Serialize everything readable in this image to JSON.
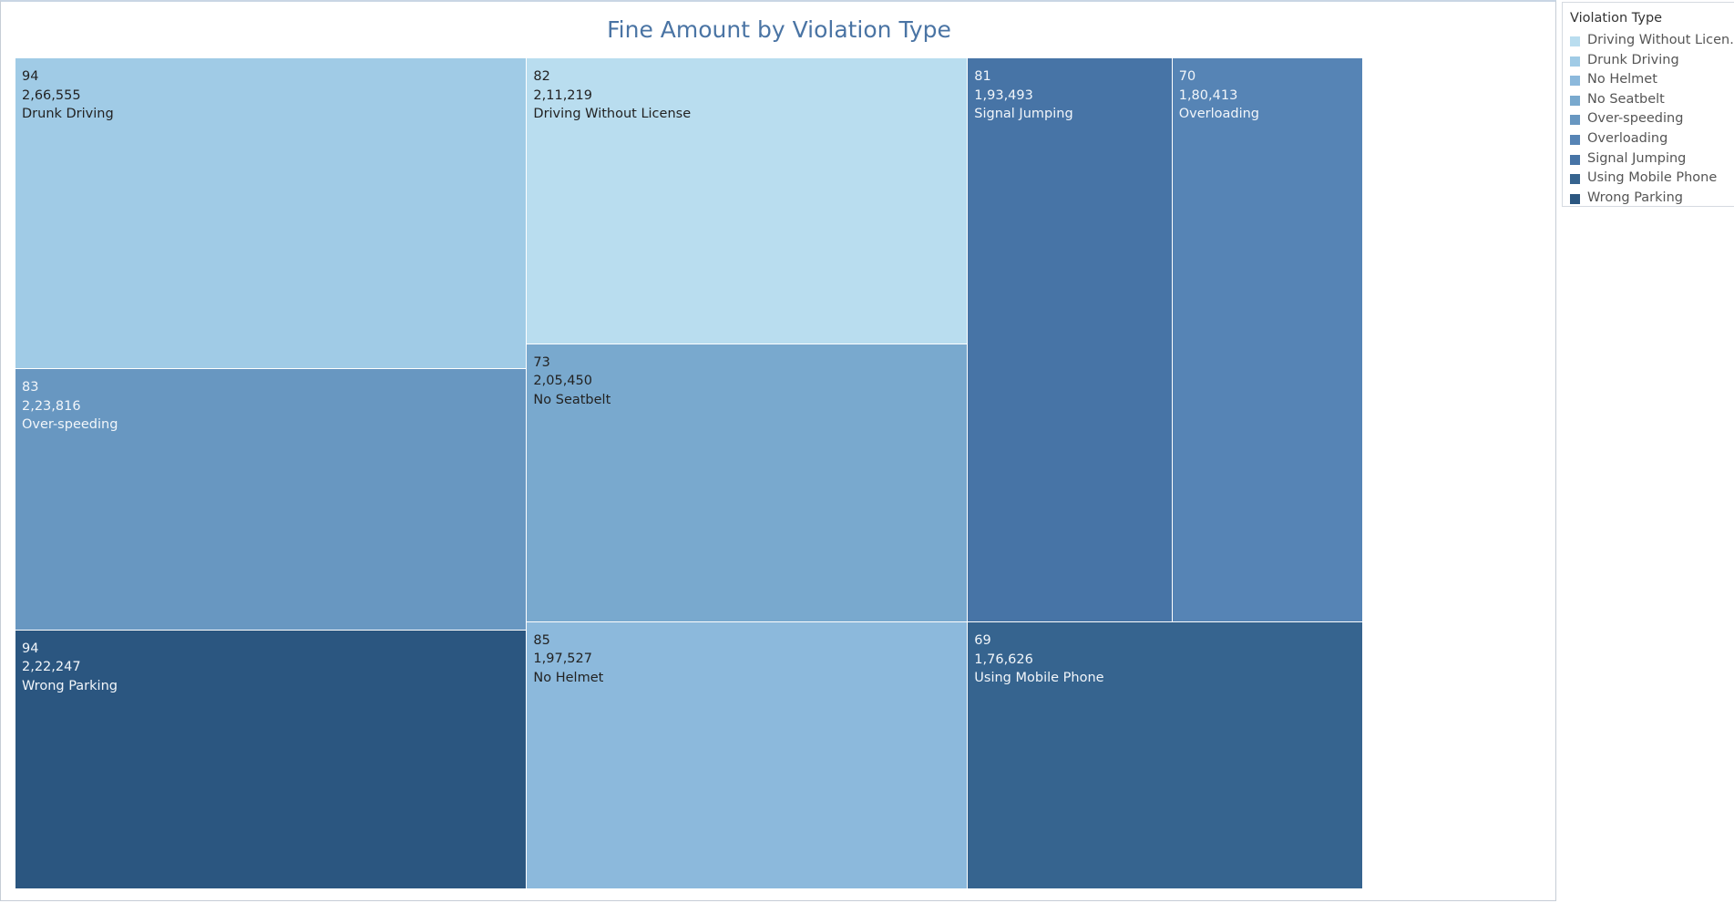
{
  "chart_data": {
    "type": "treemap",
    "title": "Fine Amount by Violation Type",
    "size_measure": "Fine Amount",
    "legend": {
      "title": "Violation Type",
      "position": "top-right",
      "items": [
        {
          "label": "Driving Without Licen..",
          "color": "#b9ddef"
        },
        {
          "label": "Drunk Driving",
          "color": "#a0cbe6"
        },
        {
          "label": "No Helmet",
          "color": "#8cb9dc"
        },
        {
          "label": "No Seatbelt",
          "color": "#79a9ce"
        },
        {
          "label": "Over-speeding",
          "color": "#6897c1"
        },
        {
          "label": "Overloading",
          "color": "#5684b5"
        },
        {
          "label": "Signal Jumping",
          "color": "#4774a6"
        },
        {
          "label": "Using Mobile Phone",
          "color": "#36648f"
        },
        {
          "label": "Wrong Parking",
          "color": "#2b5680"
        }
      ]
    },
    "tiles": [
      {
        "name": "Drunk Driving",
        "count": "94",
        "fine_amount": 266555,
        "fine_label": "2,66,555",
        "color": "#a0cbe6",
        "text_color": "#222222"
      },
      {
        "name": "Over-speeding",
        "count": "83",
        "fine_amount": 223816,
        "fine_label": "2,23,816",
        "color": "#6897c1",
        "text_color": "#f2f6fa"
      },
      {
        "name": "Wrong Parking",
        "count": "94",
        "fine_amount": 222247,
        "fine_label": "2,22,247",
        "color": "#2b5680",
        "text_color": "#f2f6fa"
      },
      {
        "name": "Driving Without License",
        "count": "82",
        "fine_amount": 211219,
        "fine_label": "2,11,219",
        "color": "#b9ddef",
        "text_color": "#222222"
      },
      {
        "name": "No Seatbelt",
        "count": "73",
        "fine_amount": 205450,
        "fine_label": "2,05,450",
        "color": "#79a9ce",
        "text_color": "#222222"
      },
      {
        "name": "No Helmet",
        "count": "85",
        "fine_amount": 197527,
        "fine_label": "1,97,527",
        "color": "#8cb9dc",
        "text_color": "#222222"
      },
      {
        "name": "Signal Jumping",
        "count": "81",
        "fine_amount": 193493,
        "fine_label": "1,93,493",
        "color": "#4774a6",
        "text_color": "#f2f6fa"
      },
      {
        "name": "Overloading",
        "count": "70",
        "fine_amount": 180413,
        "fine_label": "1,80,413",
        "color": "#5684b5",
        "text_color": "#f2f6fa"
      },
      {
        "name": "Using Mobile Phone",
        "count": "69",
        "fine_amount": 176626,
        "fine_label": "1,76,626",
        "color": "#36648f",
        "text_color": "#f2f6fa"
      }
    ]
  }
}
